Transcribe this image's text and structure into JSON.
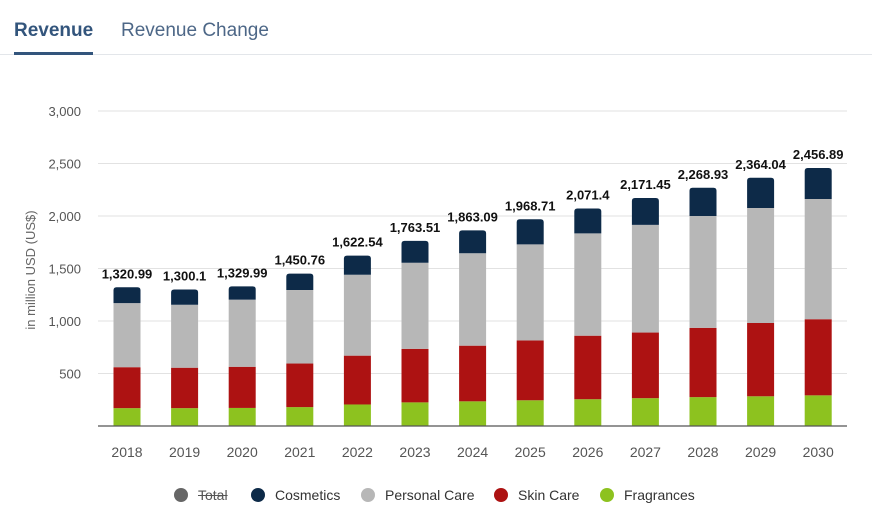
{
  "tabs": {
    "revenue": "Revenue",
    "revenue_change": "Revenue Change"
  },
  "chart_data": {
    "type": "bar",
    "stacked": true,
    "categories": [
      "2018",
      "2019",
      "2020",
      "2021",
      "2022",
      "2023",
      "2024",
      "2025",
      "2026",
      "2027",
      "2028",
      "2029",
      "2030"
    ],
    "series": [
      {
        "name": "Fragrances",
        "color": "#8dc21f",
        "values": [
          170,
          170,
          172,
          180,
          205,
          225,
          235,
          245,
          255,
          265,
          275,
          283,
          292
        ]
      },
      {
        "name": "Skin Care",
        "color": "#ad1212",
        "values": [
          390,
          385,
          392,
          415,
          465,
          510,
          530,
          570,
          605,
          625,
          660,
          698,
          725
        ]
      },
      {
        "name": "Personal Care",
        "color": "#b7b7b7",
        "values": [
          610,
          600,
          640,
          700,
          770,
          820,
          880,
          915,
          975,
          1025,
          1065,
          1095,
          1145
        ]
      },
      {
        "name": "Cosmetics",
        "color": "#0d2a48",
        "values": [
          150.99,
          145.1,
          125.99,
          155.76,
          182.54,
          208.51,
          218.09,
          238.71,
          236.4,
          256.45,
          268.93,
          288.04,
          294.89
        ]
      }
    ],
    "totals": [
      "1,320.99",
      "1,300.1",
      "1,329.99",
      "1,450.76",
      "1,622.54",
      "1,763.51",
      "1,863.09",
      "1,968.71",
      "2,071.4",
      "2,171.45",
      "2,268.93",
      "2,364.04",
      "2,456.89"
    ],
    "ylabel": "in million USD (US$)",
    "ylim": [
      0,
      3000
    ],
    "yticks": [
      500,
      1000,
      1500,
      2000,
      2500,
      3000
    ],
    "ytick_labels": [
      "500",
      "1,000",
      "1,500",
      "2,000",
      "2,500",
      "3,000"
    ],
    "grid": true,
    "legend_position": "bottom",
    "legend": [
      {
        "name": "Total",
        "color": "#666666",
        "hidden": true
      },
      {
        "name": "Cosmetics",
        "color": "#0d2a48"
      },
      {
        "name": "Personal Care",
        "color": "#b7b7b7"
      },
      {
        "name": "Skin Care",
        "color": "#ad1212"
      },
      {
        "name": "Fragrances",
        "color": "#8dc21f"
      }
    ]
  }
}
